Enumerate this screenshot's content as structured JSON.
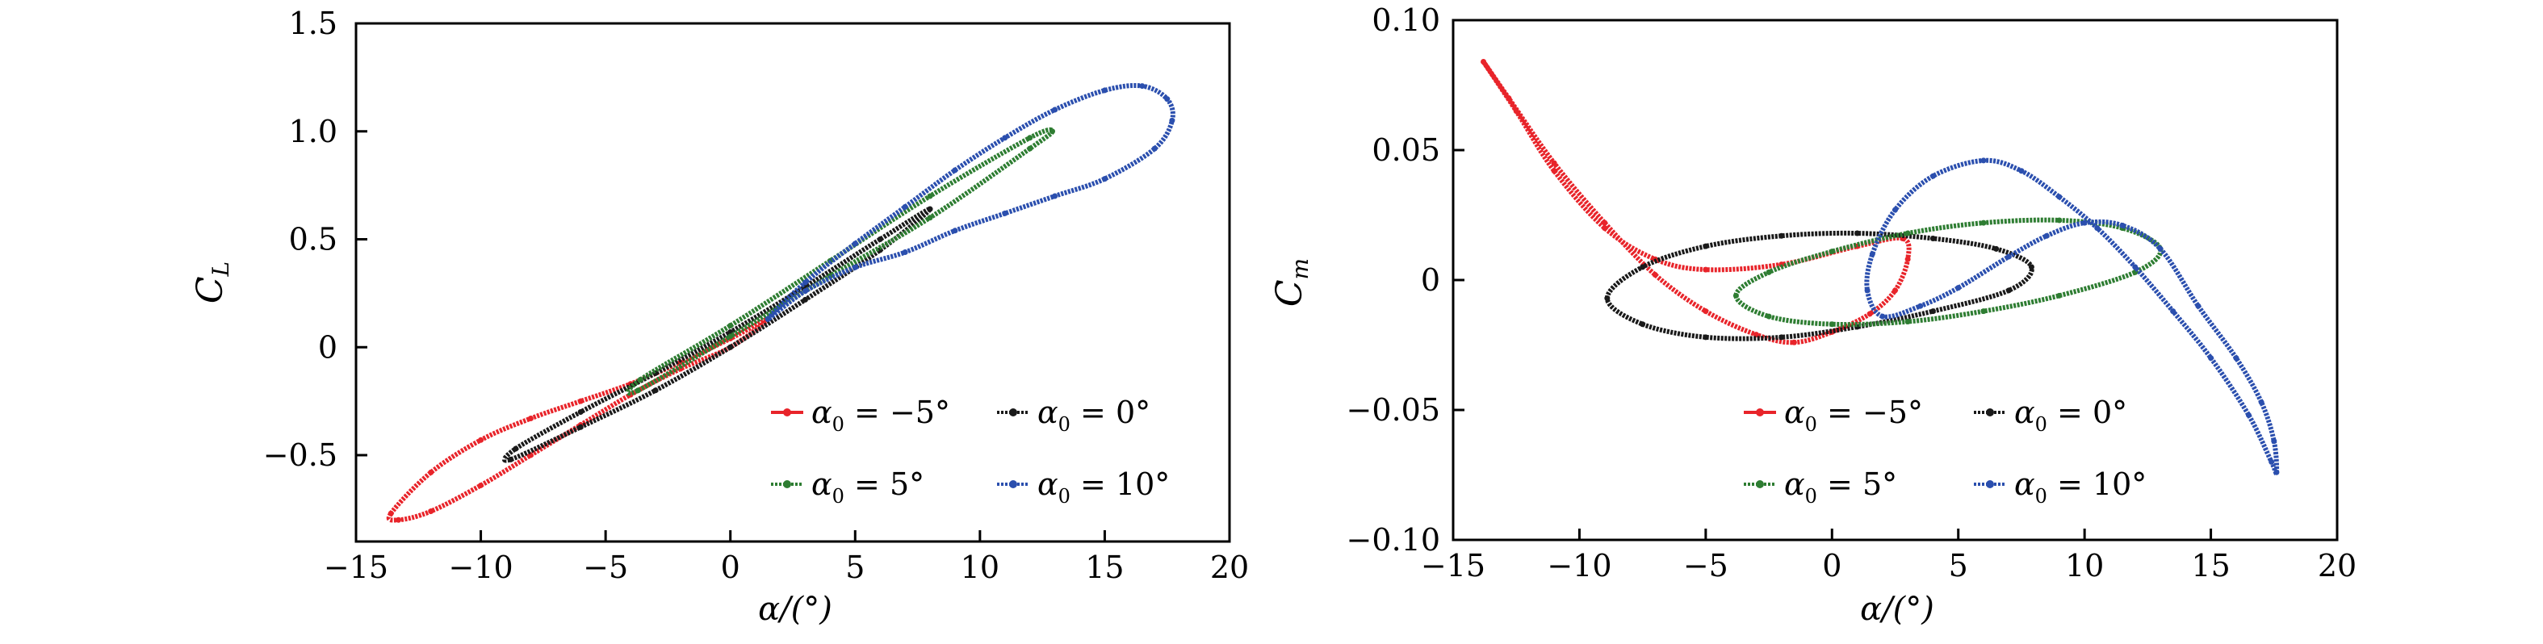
{
  "chart_data": [
    {
      "type": "line",
      "id": "cl",
      "xlabel": "α/(°)",
      "ylabel": "C_L",
      "ylabel_main": "C",
      "ylabel_sub": "L",
      "xlim": [
        -15,
        20
      ],
      "ylim": [
        -0.9,
        1.5
      ],
      "xticks": [
        -15,
        -10,
        -5,
        0,
        5,
        10,
        15,
        20
      ],
      "xtick_labels": [
        "−15",
        "−10",
        "−5",
        "0",
        "5",
        "10",
        "15",
        "20"
      ],
      "yticks": [
        -0.5,
        0,
        0.5,
        1.0,
        1.5
      ],
      "ytick_labels": [
        "−0.5",
        "0",
        "0.5",
        "1.0",
        "1.5"
      ],
      "grid": false,
      "legend_placement": "lower-right",
      "series": [
        {
          "name": "α0 = −5°",
          "label_main": "α",
          "label_sub": "0",
          "label_rest": " = −5°",
          "color": "#e8242a",
          "points": [
            [
              -13.6,
              -0.77
            ],
            [
              -12,
              -0.58
            ],
            [
              -10,
              -0.43
            ],
            [
              -8,
              -0.33
            ],
            [
              -6,
              -0.25
            ],
            [
              -4,
              -0.17
            ],
            [
              -2,
              -0.07
            ],
            [
              0,
              0.04
            ],
            [
              1.5,
              0.13
            ],
            [
              0,
              0.0
            ],
            [
              -2,
              -0.1
            ],
            [
              -4,
              -0.22
            ],
            [
              -6,
              -0.36
            ],
            [
              -8,
              -0.5
            ],
            [
              -10,
              -0.64
            ],
            [
              -12,
              -0.76
            ],
            [
              -13.3,
              -0.8
            ]
          ]
        },
        {
          "name": "α0 = 0°",
          "label_main": "α",
          "label_sub": "0",
          "label_rest": " = 0°",
          "color": "#1a1a1a",
          "points": [
            [
              -8.6,
              -0.47
            ],
            [
              -6,
              -0.3
            ],
            [
              -3,
              -0.12
            ],
            [
              0,
              0.07
            ],
            [
              3,
              0.28
            ],
            [
              6,
              0.5
            ],
            [
              8,
              0.64
            ],
            [
              6,
              0.45
            ],
            [
              3,
              0.22
            ],
            [
              0,
              0.0
            ],
            [
              -3,
              -0.2
            ],
            [
              -6,
              -0.37
            ],
            [
              -8.8,
              -0.52
            ]
          ]
        },
        {
          "name": "α0 = 5°",
          "label_main": "α",
          "label_sub": "0",
          "label_rest": " = 5°",
          "color": "#2e7d32",
          "points": [
            [
              -3.6,
              -0.15
            ],
            [
              0,
              0.1
            ],
            [
              4,
              0.4
            ],
            [
              8,
              0.7
            ],
            [
              12,
              0.97
            ],
            [
              12.9,
              1.0
            ],
            [
              12,
              0.92
            ],
            [
              8,
              0.6
            ],
            [
              4,
              0.33
            ],
            [
              0,
              0.05
            ],
            [
              -3.7,
              -0.2
            ]
          ]
        },
        {
          "name": "α0 = 10°",
          "label_main": "α",
          "label_sub": "0",
          "label_rest": " = 10°",
          "color": "#2b4fae",
          "points": [
            [
              1.5,
              0.13
            ],
            [
              3,
              0.3
            ],
            [
              5,
              0.48
            ],
            [
              7,
              0.65
            ],
            [
              9,
              0.82
            ],
            [
              11,
              0.97
            ],
            [
              13,
              1.1
            ],
            [
              15,
              1.19
            ],
            [
              16.5,
              1.21
            ],
            [
              17.5,
              1.15
            ],
            [
              17.7,
              1.05
            ],
            [
              17,
              0.92
            ],
            [
              15,
              0.78
            ],
            [
              13,
              0.7
            ],
            [
              11,
              0.62
            ],
            [
              9,
              0.54
            ],
            [
              7,
              0.44
            ],
            [
              5,
              0.37
            ],
            [
              3,
              0.26
            ]
          ]
        }
      ]
    },
    {
      "type": "line",
      "id": "cm",
      "xlabel": "α/(°)",
      "ylabel": "C_m",
      "ylabel_main": "C",
      "ylabel_sub": "m",
      "xlim": [
        -15,
        20
      ],
      "ylim": [
        -0.1,
        0.1
      ],
      "xticks": [
        -15,
        -10,
        -5,
        0,
        5,
        10,
        15,
        20
      ],
      "xtick_labels": [
        "−15",
        "−10",
        "−5",
        "0",
        "5",
        "10",
        "15",
        "20"
      ],
      "yticks": [
        -0.1,
        -0.05,
        0,
        0.05,
        0.1
      ],
      "ytick_labels": [
        "−0.10",
        "−0.05",
        "0",
        "0.05",
        "0.10"
      ],
      "grid": false,
      "legend_placement": "lower-center",
      "series": [
        {
          "name": "α0 = −5°",
          "label_main": "α",
          "label_sub": "0",
          "label_rest": " = −5°",
          "color": "#e8242a",
          "points": [
            [
              -13.8,
              0.084
            ],
            [
              -12.5,
              0.065
            ],
            [
              -11,
              0.042
            ],
            [
              -9,
              0.02
            ],
            [
              -7,
              0.008
            ],
            [
              -5,
              0.004
            ],
            [
              -2,
              0.006
            ],
            [
              1,
              0.013
            ],
            [
              2.8,
              0.016
            ],
            [
              3,
              0.008
            ],
            [
              2.5,
              -0.004
            ],
            [
              1.5,
              -0.013
            ],
            [
              0,
              -0.02
            ],
            [
              -1.5,
              -0.024
            ],
            [
              -3,
              -0.021
            ],
            [
              -5,
              -0.012
            ],
            [
              -7,
              0.002
            ],
            [
              -9,
              0.022
            ],
            [
              -11,
              0.045
            ],
            [
              -12.8,
              0.07
            ]
          ]
        },
        {
          "name": "α0 = 0°",
          "label_main": "α",
          "label_sub": "0",
          "label_rest": " = 0°",
          "color": "#1a1a1a",
          "points": [
            [
              -8.9,
              -0.007
            ],
            [
              -7.5,
              0.005
            ],
            [
              -5,
              0.013
            ],
            [
              -2,
              0.017
            ],
            [
              1,
              0.018
            ],
            [
              4,
              0.016
            ],
            [
              6.5,
              0.012
            ],
            [
              7.9,
              0.005
            ],
            [
              7,
              -0.004
            ],
            [
              4,
              -0.012
            ],
            [
              1,
              -0.018
            ],
            [
              -2,
              -0.022
            ],
            [
              -5,
              -0.022
            ],
            [
              -7.5,
              -0.017
            ]
          ]
        },
        {
          "name": "α0 = 5°",
          "label_main": "α",
          "label_sub": "0",
          "label_rest": " = 5°",
          "color": "#2e7d32",
          "points": [
            [
              -3.8,
              -0.006
            ],
            [
              -2.5,
              0.003
            ],
            [
              0,
              0.011
            ],
            [
              3,
              0.018
            ],
            [
              6,
              0.022
            ],
            [
              9,
              0.023
            ],
            [
              11.5,
              0.02
            ],
            [
              13,
              0.012
            ],
            [
              12,
              0.003
            ],
            [
              9,
              -0.006
            ],
            [
              6,
              -0.012
            ],
            [
              3,
              -0.016
            ],
            [
              0,
              -0.017
            ],
            [
              -2.5,
              -0.014
            ]
          ]
        },
        {
          "name": "α0 = 10°",
          "label_main": "α",
          "label_sub": "0",
          "label_rest": " = 10°",
          "color": "#2b4fae",
          "points": [
            [
              2,
              -0.014
            ],
            [
              1.4,
              -0.004
            ],
            [
              1.6,
              0.01
            ],
            [
              2.5,
              0.027
            ],
            [
              4,
              0.04
            ],
            [
              6,
              0.046
            ],
            [
              7.5,
              0.042
            ],
            [
              9,
              0.032
            ],
            [
              10.5,
              0.02
            ],
            [
              12,
              0.005
            ],
            [
              13.5,
              -0.012
            ],
            [
              15,
              -0.03
            ],
            [
              16.5,
              -0.052
            ],
            [
              17.4,
              -0.07
            ],
            [
              17.6,
              -0.074
            ],
            [
              17.5,
              -0.062
            ],
            [
              17,
              -0.047
            ],
            [
              16,
              -0.03
            ],
            [
              14.5,
              -0.01
            ],
            [
              13,
              0.012
            ],
            [
              11.5,
              0.021
            ],
            [
              10,
              0.022
            ],
            [
              8.5,
              0.017
            ],
            [
              7,
              0.009
            ],
            [
              5,
              -0.003
            ],
            [
              3.5,
              -0.01
            ]
          ]
        }
      ]
    }
  ]
}
